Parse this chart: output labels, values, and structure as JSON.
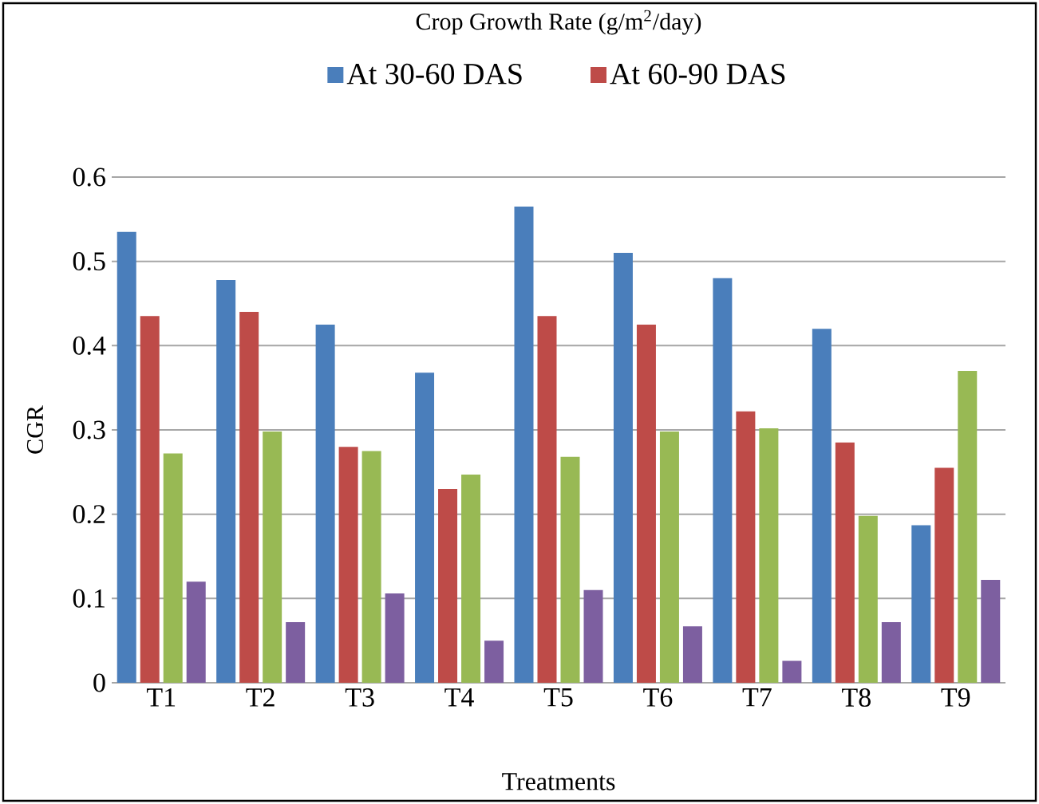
{
  "chart_data": {
    "type": "bar",
    "title": "Crop Growth Rate (g/m$^{2}$/day)",
    "xlabel": "Treatments",
    "ylabel": "CGR",
    "categories": [
      "T1",
      "T2",
      "T3",
      "T4",
      "T5",
      "T6",
      "T7",
      "T8",
      "T9"
    ],
    "series": [
      {
        "name": "At 30-60 DAS",
        "color": "#4a7ebb",
        "values": [
          0.535,
          0.478,
          0.425,
          0.368,
          0.565,
          0.51,
          0.48,
          0.42,
          0.187
        ]
      },
      {
        "name": "At 60-90 DAS",
        "color": "#be4b48",
        "values": [
          0.435,
          0.44,
          0.28,
          0.23,
          0.435,
          0.425,
          0.322,
          0.285,
          0.255
        ]
      },
      {
        "color": "#98b954",
        "values": [
          0.272,
          0.298,
          0.275,
          0.247,
          0.268,
          0.298,
          0.302,
          0.198,
          0.37
        ]
      },
      {
        "color": "#7d5fa0",
        "values": [
          0.12,
          0.072,
          0.106,
          0.05,
          0.11,
          0.067,
          0.026,
          0.072,
          0.122
        ]
      }
    ],
    "ylim": [
      0,
      0.6
    ],
    "yticks": [
      0,
      0.1,
      0.2,
      0.3,
      0.4,
      0.5,
      0.6
    ],
    "grid": "y",
    "legend": "top"
  }
}
